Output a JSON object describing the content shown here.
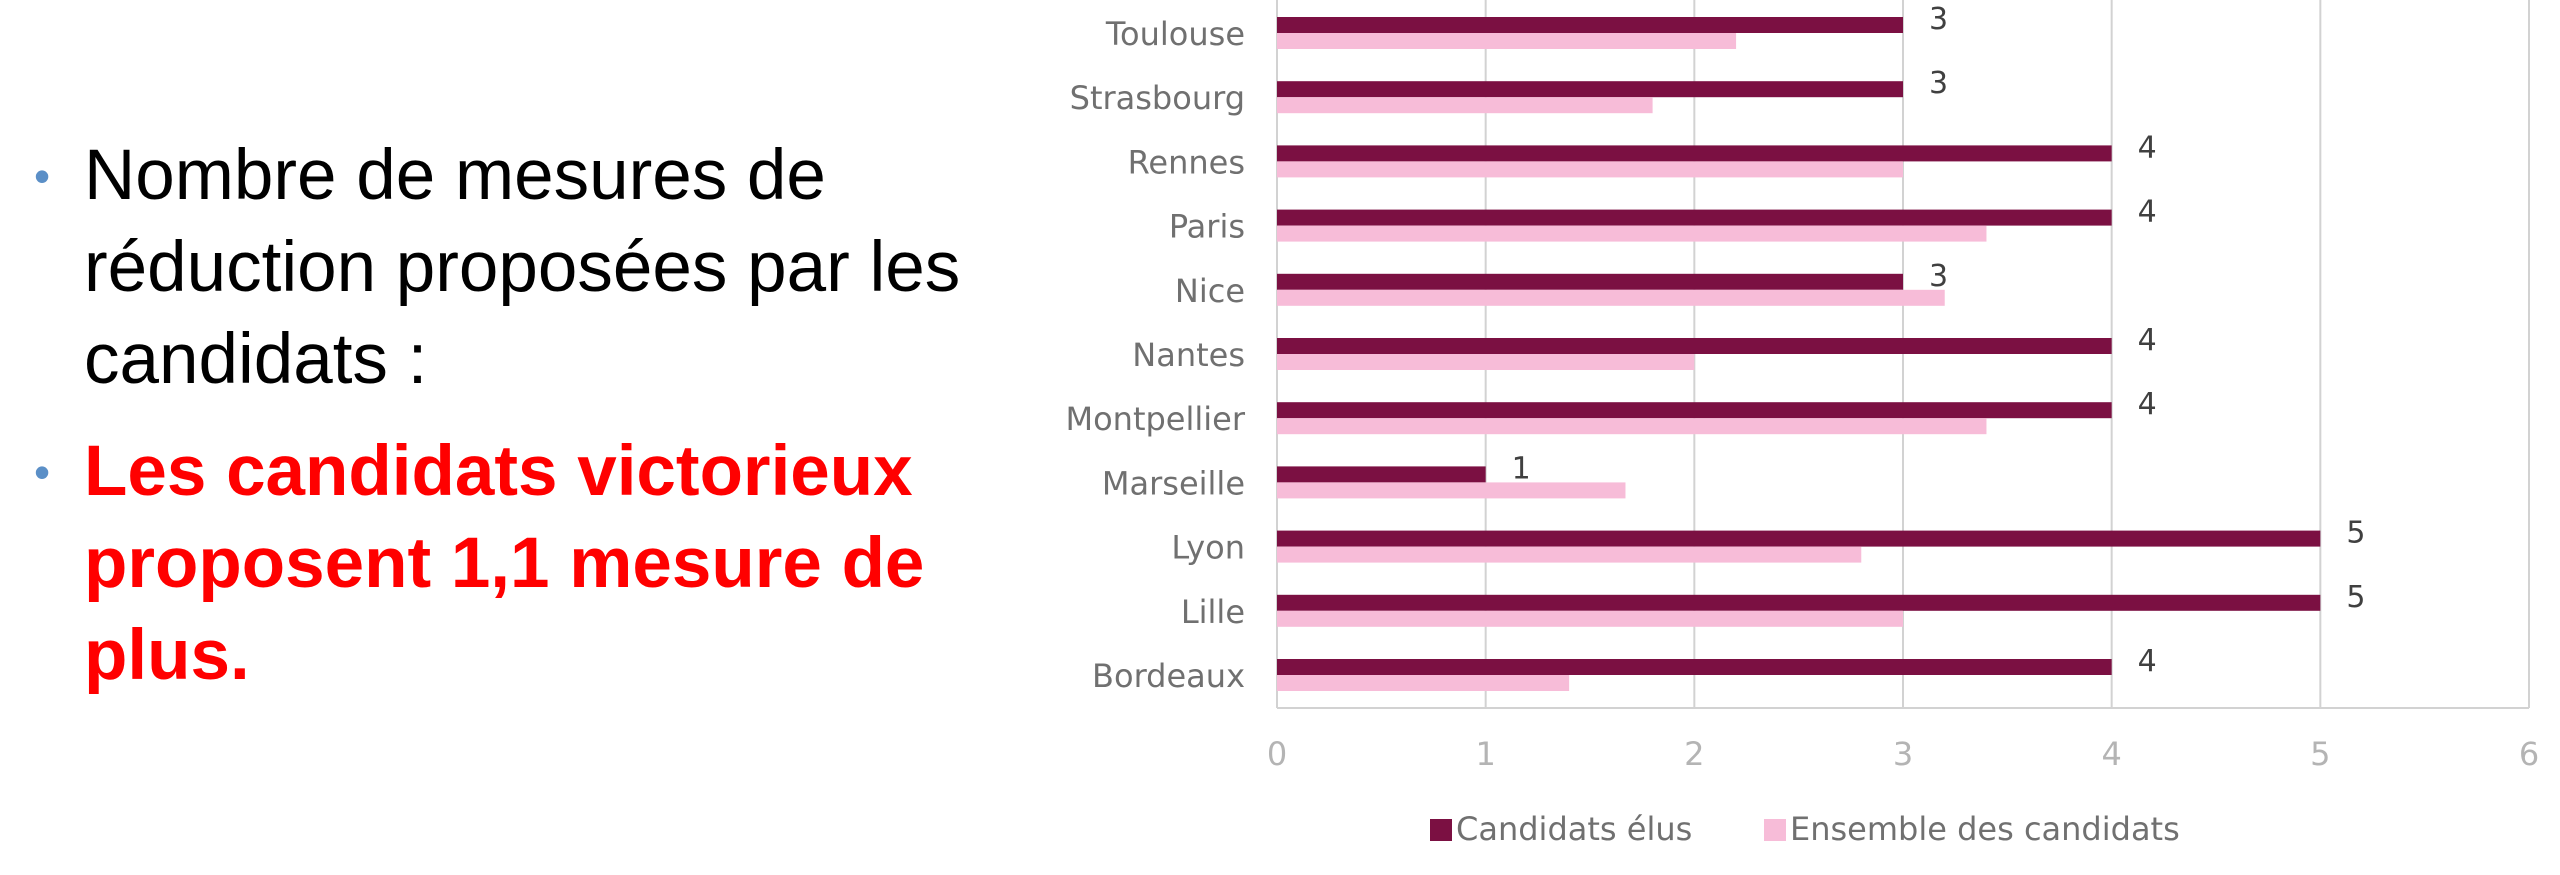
{
  "slide": {
    "bullets": [
      {
        "text": "Nombre de mesures de réduction proposées par les candidats :",
        "emphasis": false
      },
      {
        "text": "Les candidats victorieux proposent 1,1 mesure de plus.",
        "emphasis": true
      }
    ],
    "colors": {
      "bullet_marker": "#5b8fc7",
      "emphasis_text": "#ff0000",
      "body_text": "#000000"
    }
  },
  "chart_data": {
    "type": "bar",
    "orientation": "horizontal",
    "categories": [
      "Toulouse",
      "Strasbourg",
      "Rennes",
      "Paris",
      "Nice",
      "Nantes",
      "Montpellier",
      "Marseille",
      "Lyon",
      "Lille",
      "Bordeaux"
    ],
    "series": [
      {
        "name": "Candidats élus",
        "color": "#7b1042",
        "values": [
          3,
          3,
          4,
          4,
          3,
          4,
          4,
          1,
          5,
          5,
          4
        ],
        "value_labels": [
          "3",
          "3",
          "4",
          "4",
          "3",
          "4",
          "4",
          "1",
          "5",
          "5",
          "4"
        ]
      },
      {
        "name": "Ensemble des candidats",
        "color": "#f7bcd8",
        "values": [
          2.2,
          1.8,
          3.0,
          3.4,
          3.2,
          2.0,
          3.4,
          1.67,
          2.8,
          3.0,
          1.4
        ]
      }
    ],
    "xlim": [
      0,
      6
    ],
    "xticks": [
      "0",
      "1",
      "2",
      "3",
      "4",
      "5",
      "6"
    ],
    "grid": "vertical",
    "legend": "bottom",
    "title": "",
    "xlabel": "",
    "ylabel": ""
  }
}
